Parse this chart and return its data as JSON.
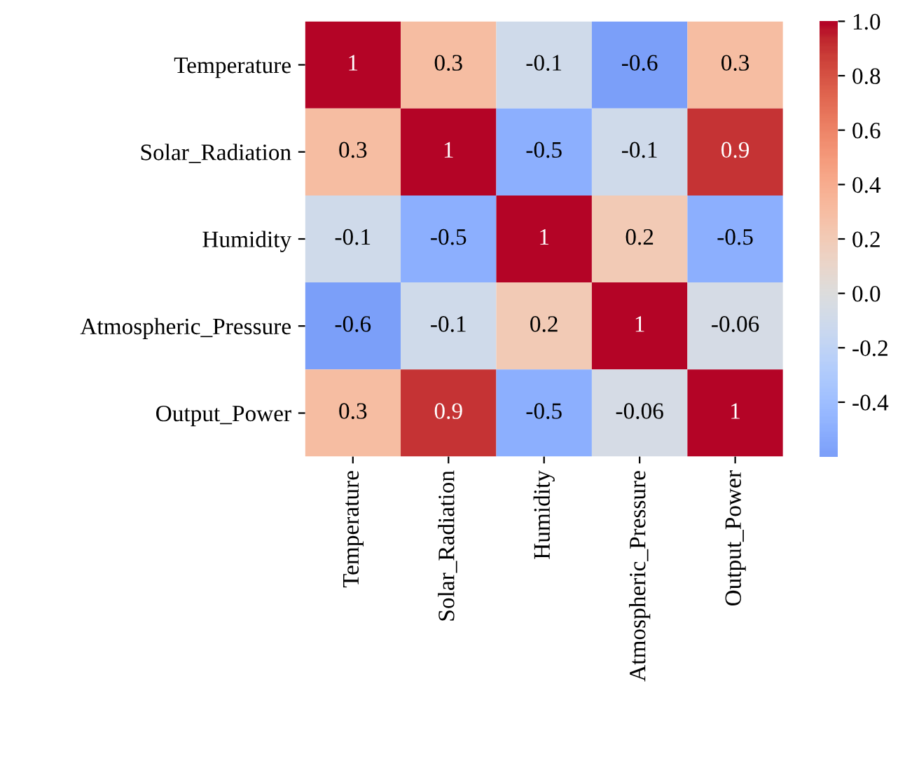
{
  "chart_data": {
    "type": "heatmap",
    "categories": [
      "Temperature",
      "Solar_Radiation",
      "Humidity",
      "Atmospheric_Pressure",
      "Output_Power"
    ],
    "y_categories": [
      "Temperature",
      "Solar_Radiation",
      "Humidity",
      "Atmospheric_Pressure",
      "Output_Power"
    ],
    "cells": [
      [
        1,
        0.3,
        -0.1,
        -0.6,
        0.3
      ],
      [
        0.3,
        1,
        -0.5,
        -0.1,
        0.9
      ],
      [
        -0.1,
        -0.5,
        1,
        0.2,
        -0.5
      ],
      [
        -0.6,
        -0.1,
        0.2,
        1,
        -0.06
      ],
      [
        0.3,
        0.9,
        -0.5,
        -0.06,
        1
      ]
    ],
    "data_labels": true,
    "clim": [
      -0.6,
      1.0
    ],
    "cticks": [
      {
        "value": -0.4,
        "label": "-0.4"
      },
      {
        "value": -0.2,
        "label": "-0.2"
      },
      {
        "value": 0.0,
        "label": "0.0"
      },
      {
        "value": 0.2,
        "label": "0.2"
      },
      {
        "value": 0.4,
        "label": "0.4"
      },
      {
        "value": 0.6,
        "label": "0.6"
      },
      {
        "value": 0.8,
        "label": "0.8"
      },
      {
        "value": 1.0,
        "label": "1.0"
      }
    ]
  }
}
